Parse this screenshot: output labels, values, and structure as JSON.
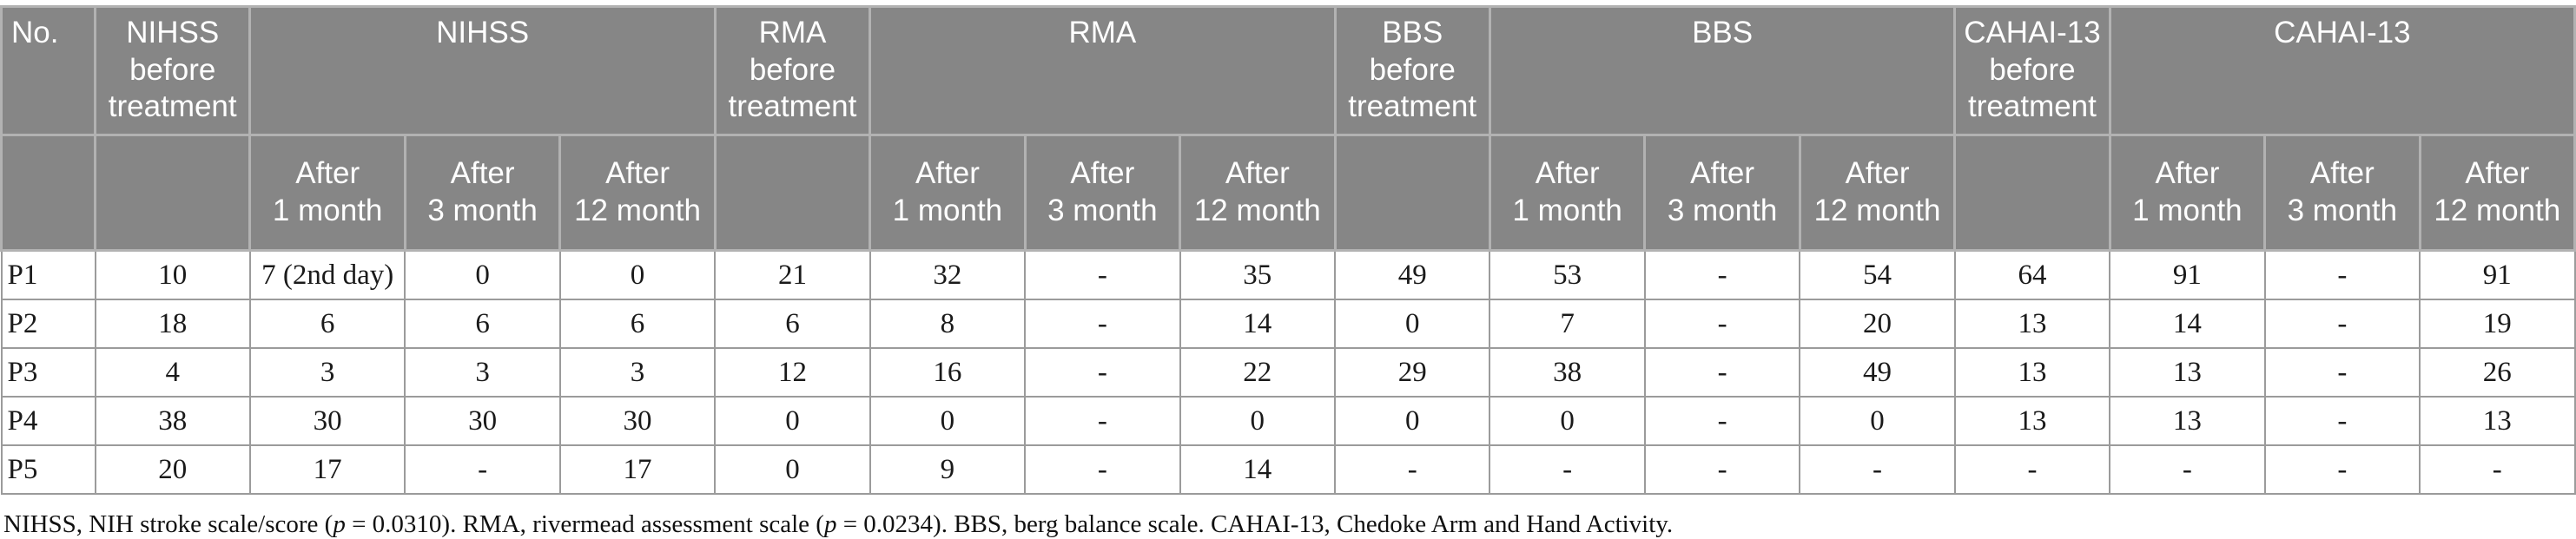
{
  "table": {
    "header": {
      "no_label": "No.",
      "groups": [
        {
          "name": "NIHSS",
          "before": "NIHSS before treatment"
        },
        {
          "name": "RMA",
          "before": "RMA before treatment"
        },
        {
          "name": "BBS",
          "before": "BBS before treatment"
        },
        {
          "name": "CAHAI-13",
          "before": "CAHAI-13 before treatment"
        }
      ],
      "sub": [
        {
          "line1": "After",
          "line2": "1 month"
        },
        {
          "line1": "After",
          "line2": "3 month"
        },
        {
          "line1": "After",
          "line2": "12 month"
        }
      ]
    },
    "rows": [
      {
        "id": "P1",
        "cells": [
          "10",
          "7 (2nd day)",
          "0",
          "0",
          "21",
          "32",
          "-",
          "35",
          "49",
          "53",
          "-",
          "54",
          "64",
          "91",
          "-",
          "91"
        ]
      },
      {
        "id": "P2",
        "cells": [
          "18",
          "6",
          "6",
          "6",
          "6",
          "8",
          "-",
          "14",
          "0",
          "7",
          "-",
          "20",
          "13",
          "14",
          "-",
          "19"
        ]
      },
      {
        "id": "P3",
        "cells": [
          "4",
          "3",
          "3",
          "3",
          "12",
          "16",
          "-",
          "22",
          "29",
          "38",
          "-",
          "49",
          "13",
          "13",
          "-",
          "26"
        ]
      },
      {
        "id": "P4",
        "cells": [
          "38",
          "30",
          "30",
          "30",
          "0",
          "0",
          "-",
          "0",
          "0",
          "0",
          "-",
          "0",
          "13",
          "13",
          "-",
          "13"
        ]
      },
      {
        "id": "P5",
        "cells": [
          "20",
          "17",
          "-",
          "17",
          "0",
          "9",
          "-",
          "14",
          "-",
          "-",
          "-",
          "-",
          "-",
          "-",
          "-",
          "-"
        ]
      }
    ]
  },
  "footnote": {
    "segments": [
      {
        "text": "NIHSS, NIH stroke scale/score (",
        "italic": false
      },
      {
        "text": "p",
        "italic": true
      },
      {
        "text": " = 0.0310). RMA, rivermead assessment scale (",
        "italic": false
      },
      {
        "text": "p",
        "italic": true
      },
      {
        "text": " = 0.0234). BBS, berg balance scale. CAHAI-13, Chedoke Arm and Hand Activity.",
        "italic": false
      }
    ]
  },
  "colors": {
    "header_bg": "#868686",
    "header_border": "#b2b2b2",
    "header_text": "#ffffff",
    "body_border": "#9b9b9b",
    "body_text": "#1a1a1a"
  }
}
